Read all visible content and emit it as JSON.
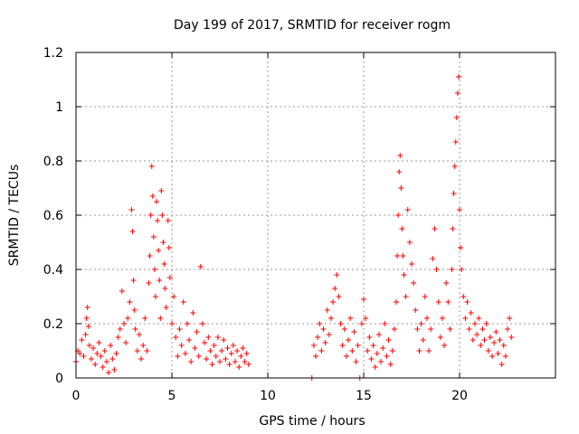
{
  "chart_data": {
    "type": "scatter",
    "title": "Day 199 of 2017, SRMTID for receiver rogm",
    "xlabel": "GPS time / hours",
    "ylabel": "SRMTID / TECUs",
    "xlim": [
      0,
      25
    ],
    "ylim": [
      0,
      1.2
    ],
    "x_ticks": [
      0,
      5,
      10,
      15,
      20
    ],
    "x_tick_labels": [
      "0",
      "5",
      "10",
      "15",
      "20"
    ],
    "y_ticks": [
      0,
      0.2,
      0.4,
      0.6,
      0.8,
      1,
      1.2
    ],
    "y_tick_labels": [
      "0",
      "0.2",
      "0.4",
      "0.6",
      "0.8",
      "1",
      "1.2"
    ],
    "grid": true,
    "marker": "plus",
    "series_color": "#ff0000",
    "series": [
      {
        "name": "rogm",
        "points": [
          [
            0.0,
            0.06
          ],
          [
            0.1,
            0.1
          ],
          [
            0.2,
            0.09
          ],
          [
            0.3,
            0.14
          ],
          [
            0.4,
            0.08
          ],
          [
            0.5,
            0.16
          ],
          [
            0.55,
            0.22
          ],
          [
            0.6,
            0.26
          ],
          [
            0.65,
            0.19
          ],
          [
            0.7,
            0.12
          ],
          [
            0.8,
            0.07
          ],
          [
            0.9,
            0.11
          ],
          [
            1.0,
            0.05
          ],
          [
            1.1,
            0.09
          ],
          [
            1.2,
            0.13
          ],
          [
            1.3,
            0.08
          ],
          [
            1.4,
            0.04
          ],
          [
            1.5,
            0.1
          ],
          [
            1.6,
            0.06
          ],
          [
            1.7,
            0.02
          ],
          [
            1.8,
            0.12
          ],
          [
            1.9,
            0.07
          ],
          [
            2.0,
            0.03
          ],
          [
            2.1,
            0.09
          ],
          [
            2.2,
            0.15
          ],
          [
            2.3,
            0.18
          ],
          [
            2.4,
            0.32
          ],
          [
            2.5,
            0.2
          ],
          [
            2.6,
            0.13
          ],
          [
            2.7,
            0.22
          ],
          [
            2.8,
            0.28
          ],
          [
            2.9,
            0.62
          ],
          [
            2.95,
            0.54
          ],
          [
            3.0,
            0.36
          ],
          [
            3.05,
            0.25
          ],
          [
            3.1,
            0.18
          ],
          [
            3.2,
            0.1
          ],
          [
            3.3,
            0.16
          ],
          [
            3.4,
            0.07
          ],
          [
            3.5,
            0.12
          ],
          [
            3.6,
            0.22
          ],
          [
            3.7,
            0.1
          ],
          [
            3.8,
            0.35
          ],
          [
            3.85,
            0.45
          ],
          [
            3.9,
            0.6
          ],
          [
            3.95,
            0.78
          ],
          [
            4.0,
            0.67
          ],
          [
            4.05,
            0.52
          ],
          [
            4.1,
            0.4
          ],
          [
            4.15,
            0.3
          ],
          [
            4.2,
            0.65
          ],
          [
            4.25,
            0.58
          ],
          [
            4.3,
            0.47
          ],
          [
            4.35,
            0.36
          ],
          [
            4.4,
            0.22
          ],
          [
            4.45,
            0.69
          ],
          [
            4.5,
            0.6
          ],
          [
            4.55,
            0.5
          ],
          [
            4.6,
            0.42
          ],
          [
            4.65,
            0.33
          ],
          [
            4.7,
            0.26
          ],
          [
            4.8,
            0.58
          ],
          [
            4.85,
            0.48
          ],
          [
            4.9,
            0.37
          ],
          [
            5.0,
            0.2
          ],
          [
            5.1,
            0.3
          ],
          [
            5.2,
            0.15
          ],
          [
            5.3,
            0.08
          ],
          [
            5.4,
            0.18
          ],
          [
            5.5,
            0.12
          ],
          [
            5.6,
            0.28
          ],
          [
            5.7,
            0.09
          ],
          [
            5.8,
            0.2
          ],
          [
            5.9,
            0.14
          ],
          [
            6.0,
            0.06
          ],
          [
            6.1,
            0.24
          ],
          [
            6.2,
            0.11
          ],
          [
            6.3,
            0.17
          ],
          [
            6.4,
            0.08
          ],
          [
            6.5,
            0.41
          ],
          [
            6.6,
            0.2
          ],
          [
            6.7,
            0.13
          ],
          [
            6.8,
            0.07
          ],
          [
            6.9,
            0.15
          ],
          [
            7.0,
            0.1
          ],
          [
            7.1,
            0.05
          ],
          [
            7.2,
            0.12
          ],
          [
            7.3,
            0.08
          ],
          [
            7.4,
            0.15
          ],
          [
            7.5,
            0.06
          ],
          [
            7.6,
            0.1
          ],
          [
            7.7,
            0.14
          ],
          [
            7.8,
            0.07
          ],
          [
            7.9,
            0.11
          ],
          [
            8.0,
            0.05
          ],
          [
            8.1,
            0.09
          ],
          [
            8.2,
            0.12
          ],
          [
            8.3,
            0.06
          ],
          [
            8.4,
            0.1
          ],
          [
            8.5,
            0.04
          ],
          [
            8.6,
            0.08
          ],
          [
            8.7,
            0.11
          ],
          [
            8.8,
            0.06
          ],
          [
            8.9,
            0.09
          ],
          [
            9.0,
            0.05
          ],
          [
            12.3,
            0.0
          ],
          [
            14.8,
            0.0
          ],
          [
            12.4,
            0.12
          ],
          [
            12.5,
            0.08
          ],
          [
            12.6,
            0.15
          ],
          [
            12.7,
            0.2
          ],
          [
            12.8,
            0.1
          ],
          [
            12.9,
            0.18
          ],
          [
            13.0,
            0.13
          ],
          [
            13.1,
            0.25
          ],
          [
            13.2,
            0.16
          ],
          [
            13.3,
            0.22
          ],
          [
            13.4,
            0.28
          ],
          [
            13.5,
            0.33
          ],
          [
            13.6,
            0.38
          ],
          [
            13.7,
            0.3
          ],
          [
            13.8,
            0.2
          ],
          [
            13.9,
            0.12
          ],
          [
            14.0,
            0.18
          ],
          [
            14.1,
            0.08
          ],
          [
            14.2,
            0.14
          ],
          [
            14.3,
            0.22
          ],
          [
            14.4,
            0.1
          ],
          [
            14.5,
            0.17
          ],
          [
            14.6,
            0.06
          ],
          [
            14.7,
            0.12
          ],
          [
            14.9,
            0.2
          ],
          [
            15.0,
            0.29
          ],
          [
            15.1,
            0.22
          ],
          [
            15.2,
            0.1
          ],
          [
            15.3,
            0.15
          ],
          [
            15.4,
            0.07
          ],
          [
            15.5,
            0.12
          ],
          [
            15.6,
            0.04
          ],
          [
            15.7,
            0.09
          ],
          [
            15.8,
            0.16
          ],
          [
            15.9,
            0.06
          ],
          [
            16.0,
            0.11
          ],
          [
            16.1,
            0.2
          ],
          [
            16.2,
            0.08
          ],
          [
            16.3,
            0.14
          ],
          [
            16.4,
            0.05
          ],
          [
            16.5,
            0.1
          ],
          [
            16.6,
            0.18
          ],
          [
            16.7,
            0.28
          ],
          [
            16.75,
            0.45
          ],
          [
            16.8,
            0.6
          ],
          [
            16.85,
            0.76
          ],
          [
            16.9,
            0.82
          ],
          [
            16.95,
            0.7
          ],
          [
            17.0,
            0.55
          ],
          [
            17.05,
            0.45
          ],
          [
            17.1,
            0.38
          ],
          [
            17.2,
            0.3
          ],
          [
            17.3,
            0.62
          ],
          [
            17.4,
            0.5
          ],
          [
            17.5,
            0.42
          ],
          [
            17.6,
            0.35
          ],
          [
            17.7,
            0.25
          ],
          [
            17.8,
            0.18
          ],
          [
            17.9,
            0.1
          ],
          [
            18.0,
            0.2
          ],
          [
            18.1,
            0.14
          ],
          [
            18.2,
            0.3
          ],
          [
            18.3,
            0.22
          ],
          [
            18.4,
            0.1
          ],
          [
            18.5,
            0.18
          ],
          [
            18.6,
            0.44
          ],
          [
            18.7,
            0.55
          ],
          [
            18.8,
            0.4
          ],
          [
            18.9,
            0.28
          ],
          [
            19.0,
            0.15
          ],
          [
            19.1,
            0.22
          ],
          [
            19.2,
            0.12
          ],
          [
            19.3,
            0.35
          ],
          [
            19.4,
            0.28
          ],
          [
            19.5,
            0.18
          ],
          [
            19.6,
            0.4
          ],
          [
            19.65,
            0.55
          ],
          [
            19.7,
            0.68
          ],
          [
            19.75,
            0.78
          ],
          [
            19.8,
            0.87
          ],
          [
            19.85,
            0.96
          ],
          [
            19.9,
            1.05
          ],
          [
            19.95,
            1.11
          ],
          [
            20.0,
            0.62
          ],
          [
            20.05,
            0.48
          ],
          [
            20.1,
            0.4
          ],
          [
            20.2,
            0.3
          ],
          [
            20.3,
            0.22
          ],
          [
            20.4,
            0.28
          ],
          [
            20.5,
            0.18
          ],
          [
            20.6,
            0.24
          ],
          [
            20.7,
            0.14
          ],
          [
            20.8,
            0.2
          ],
          [
            20.9,
            0.16
          ],
          [
            21.0,
            0.22
          ],
          [
            21.1,
            0.12
          ],
          [
            21.2,
            0.18
          ],
          [
            21.3,
            0.14
          ],
          [
            21.4,
            0.2
          ],
          [
            21.5,
            0.1
          ],
          [
            21.6,
            0.15
          ],
          [
            21.7,
            0.08
          ],
          [
            21.8,
            0.13
          ],
          [
            21.9,
            0.17
          ],
          [
            22.0,
            0.09
          ],
          [
            22.1,
            0.14
          ],
          [
            22.2,
            0.05
          ],
          [
            22.3,
            0.12
          ],
          [
            22.4,
            0.08
          ],
          [
            22.5,
            0.18
          ],
          [
            22.6,
            0.22
          ],
          [
            22.7,
            0.15
          ]
        ]
      }
    ]
  }
}
